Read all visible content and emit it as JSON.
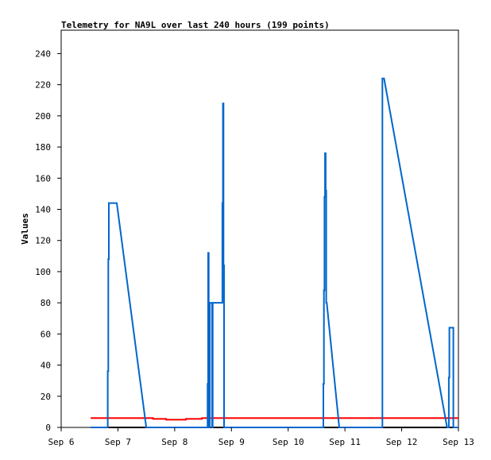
{
  "chart_data": {
    "type": "line",
    "title": "Telemetry for NA9L over last 240 hours (199 points)",
    "xlabel": "",
    "ylabel": "Values",
    "x_unit": "day",
    "xlim": [
      6,
      13
    ],
    "ylim": [
      0,
      255
    ],
    "x_ticks": [
      {
        "value": 6,
        "label": "Sep 6"
      },
      {
        "value": 7,
        "label": "Sep 7"
      },
      {
        "value": 8,
        "label": "Sep 8"
      },
      {
        "value": 9,
        "label": "Sep 9"
      },
      {
        "value": 10,
        "label": "Sep 10"
      },
      {
        "value": 11,
        "label": "Sep 11"
      },
      {
        "value": 12,
        "label": "Sep 12"
      },
      {
        "value": 13,
        "label": "Sep 13"
      }
    ],
    "y_ticks": [
      0,
      20,
      40,
      60,
      80,
      100,
      120,
      140,
      160,
      180,
      200,
      220,
      240
    ],
    "grid": false,
    "legend": "none",
    "series": [
      {
        "color": "#000000",
        "points": [
          [
            6.52,
            0
          ],
          [
            13.0,
            0
          ]
        ]
      },
      {
        "color": "#ff0000",
        "points": [
          [
            6.52,
            6
          ],
          [
            7.62,
            6
          ],
          [
            7.62,
            5.5
          ],
          [
            7.85,
            5.5
          ],
          [
            7.85,
            5
          ],
          [
            8.2,
            5
          ],
          [
            8.2,
            5.5
          ],
          [
            8.48,
            5.5
          ],
          [
            8.48,
            6
          ],
          [
            13.0,
            6
          ]
        ]
      },
      {
        "color": "#0066cc",
        "points": [
          [
            6.52,
            0
          ],
          [
            6.82,
            0
          ],
          [
            6.82,
            36
          ],
          [
            6.83,
            36
          ],
          [
            6.83,
            108
          ],
          [
            6.84,
            108
          ],
          [
            6.84,
            144
          ],
          [
            6.98,
            144
          ],
          [
            7.5,
            0
          ],
          [
            8.58,
            0
          ],
          [
            8.58,
            28
          ],
          [
            8.59,
            28
          ],
          [
            8.59,
            112
          ],
          [
            8.6,
            112
          ],
          [
            8.6,
            0
          ],
          [
            8.62,
            0
          ],
          [
            8.62,
            80
          ],
          [
            8.66,
            80
          ],
          [
            8.66,
            0
          ],
          [
            8.67,
            0
          ],
          [
            8.67,
            80
          ],
          [
            8.84,
            80
          ],
          [
            8.84,
            144
          ],
          [
            8.85,
            144
          ],
          [
            8.85,
            208
          ],
          [
            8.86,
            208
          ],
          [
            8.86,
            104
          ],
          [
            8.87,
            104
          ],
          [
            8.87,
            0
          ],
          [
            10.62,
            0
          ],
          [
            10.62,
            28
          ],
          [
            10.63,
            28
          ],
          [
            10.63,
            88
          ],
          [
            10.64,
            88
          ],
          [
            10.64,
            148
          ],
          [
            10.65,
            148
          ],
          [
            10.65,
            176
          ],
          [
            10.66,
            176
          ],
          [
            10.66,
            152
          ],
          [
            10.67,
            152
          ],
          [
            10.67,
            80
          ],
          [
            10.68,
            80
          ],
          [
            10.9,
            0
          ],
          [
            11.66,
            0
          ],
          [
            11.66,
            224
          ],
          [
            11.69,
            224
          ],
          [
            12.8,
            0
          ],
          [
            12.83,
            0
          ],
          [
            12.83,
            32
          ],
          [
            12.84,
            32
          ],
          [
            12.84,
            64
          ],
          [
            12.91,
            64
          ],
          [
            12.91,
            0
          ],
          [
            13.0,
            0
          ]
        ]
      }
    ]
  }
}
